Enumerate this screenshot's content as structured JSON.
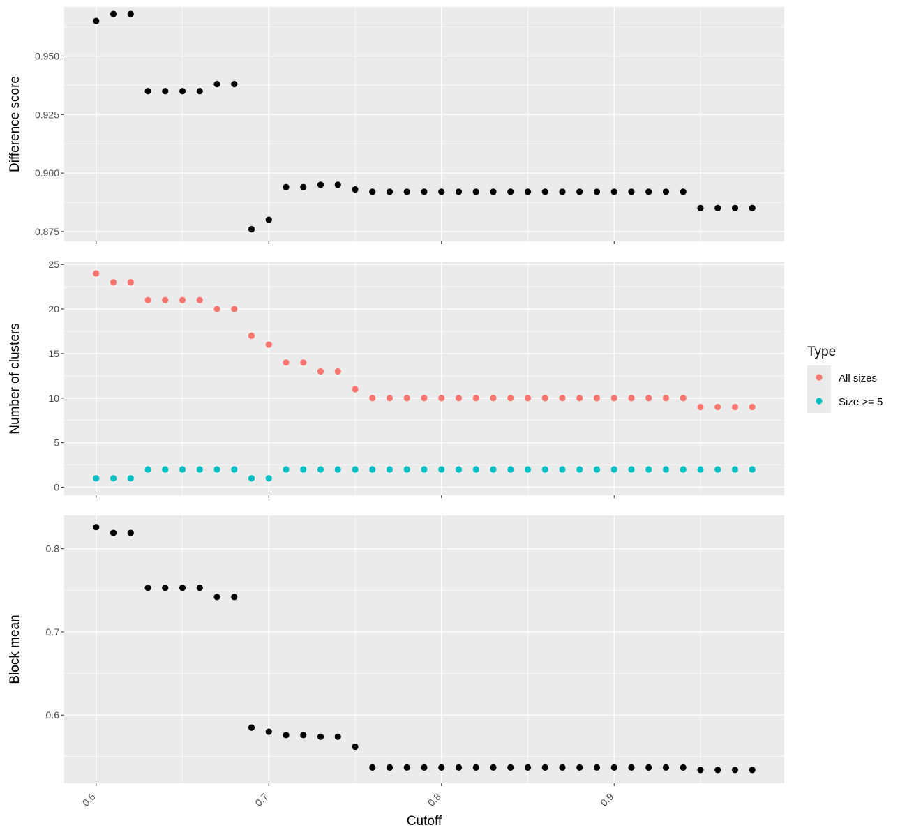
{
  "chart_data": [
    {
      "type": "scatter",
      "panel": "top",
      "ylabel": "Difference score",
      "xlim": [
        0.5815,
        0.9985
      ],
      "ylim": [
        0.8708,
        0.971
      ],
      "yticks": [
        0.875,
        0.9,
        0.925,
        0.95
      ],
      "ytick_labels": [
        "0.875",
        "0.900",
        "0.925",
        "0.950"
      ],
      "x": [
        0.6,
        0.61,
        0.62,
        0.63,
        0.64,
        0.65,
        0.66,
        0.67,
        0.68,
        0.69,
        0.7,
        0.71,
        0.72,
        0.73,
        0.74,
        0.75,
        0.76,
        0.77,
        0.78,
        0.79,
        0.8,
        0.81,
        0.82,
        0.83,
        0.84,
        0.85,
        0.86,
        0.87,
        0.88,
        0.89,
        0.9,
        0.91,
        0.92,
        0.93,
        0.94,
        0.95,
        0.96,
        0.97,
        0.98
      ],
      "series": [
        {
          "color": "#000000",
          "values": [
            0.965,
            0.968,
            0.968,
            0.935,
            0.935,
            0.935,
            0.935,
            0.938,
            0.938,
            0.876,
            0.88,
            0.894,
            0.894,
            0.895,
            0.895,
            0.893,
            0.892,
            0.892,
            0.892,
            0.892,
            0.892,
            0.892,
            0.892,
            0.892,
            0.892,
            0.892,
            0.892,
            0.892,
            0.892,
            0.892,
            0.892,
            0.892,
            0.892,
            0.892,
            0.892,
            0.885,
            0.885,
            0.885,
            0.885
          ]
        }
      ]
    },
    {
      "type": "scatter",
      "panel": "middle",
      "ylabel": "Number of clusters",
      "xlim": [
        0.5815,
        0.9985
      ],
      "ylim": [
        -0.9,
        25.25
      ],
      "yticks": [
        0,
        5,
        10,
        15,
        20,
        25
      ],
      "ytick_labels": [
        "0",
        "5",
        "10",
        "15",
        "20",
        "25"
      ],
      "x": [
        0.6,
        0.61,
        0.62,
        0.63,
        0.64,
        0.65,
        0.66,
        0.67,
        0.68,
        0.69,
        0.7,
        0.71,
        0.72,
        0.73,
        0.74,
        0.75,
        0.76,
        0.77,
        0.78,
        0.79,
        0.8,
        0.81,
        0.82,
        0.83,
        0.84,
        0.85,
        0.86,
        0.87,
        0.88,
        0.89,
        0.9,
        0.91,
        0.92,
        0.93,
        0.94,
        0.95,
        0.96,
        0.97,
        0.98
      ],
      "series": [
        {
          "name": "All sizes",
          "color": "#F8766D",
          "values": [
            24,
            23,
            23,
            21,
            21,
            21,
            21,
            20,
            20,
            17,
            16,
            14,
            14,
            13,
            13,
            11,
            10,
            10,
            10,
            10,
            10,
            10,
            10,
            10,
            10,
            10,
            10,
            10,
            10,
            10,
            10,
            10,
            10,
            10,
            10,
            9,
            9,
            9,
            9
          ]
        },
        {
          "name": "Size >= 5",
          "color": "#00BFC4",
          "values": [
            1,
            1,
            1,
            2,
            2,
            2,
            2,
            2,
            2,
            1,
            1,
            2,
            2,
            2,
            2,
            2,
            2,
            2,
            2,
            2,
            2,
            2,
            2,
            2,
            2,
            2,
            2,
            2,
            2,
            2,
            2,
            2,
            2,
            2,
            2,
            2,
            2,
            2,
            2
          ]
        }
      ]
    },
    {
      "type": "scatter",
      "panel": "bottom",
      "ylabel": "Block mean",
      "xlabel": "Cutoff",
      "xlim": [
        0.5815,
        0.9985
      ],
      "ylim": [
        0.518,
        0.84
      ],
      "yticks": [
        0.6,
        0.7,
        0.8
      ],
      "ytick_labels": [
        "0.6",
        "0.7",
        "0.8"
      ],
      "xticks": [
        0.6,
        0.7,
        0.8,
        0.9
      ],
      "xtick_labels": [
        "0.6",
        "0.7",
        "0.8",
        "0.9"
      ],
      "x": [
        0.6,
        0.61,
        0.62,
        0.63,
        0.64,
        0.65,
        0.66,
        0.67,
        0.68,
        0.69,
        0.7,
        0.71,
        0.72,
        0.73,
        0.74,
        0.75,
        0.76,
        0.77,
        0.78,
        0.79,
        0.8,
        0.81,
        0.82,
        0.83,
        0.84,
        0.85,
        0.86,
        0.87,
        0.88,
        0.89,
        0.9,
        0.91,
        0.92,
        0.93,
        0.94,
        0.95,
        0.96,
        0.97,
        0.98
      ],
      "series": [
        {
          "color": "#000000",
          "values": [
            0.826,
            0.819,
            0.819,
            0.753,
            0.753,
            0.753,
            0.753,
            0.742,
            0.742,
            0.585,
            0.58,
            0.576,
            0.576,
            0.574,
            0.574,
            0.562,
            0.537,
            0.537,
            0.537,
            0.537,
            0.537,
            0.537,
            0.537,
            0.537,
            0.537,
            0.537,
            0.537,
            0.537,
            0.537,
            0.537,
            0.537,
            0.537,
            0.537,
            0.537,
            0.537,
            0.534,
            0.534,
            0.534,
            0.534
          ]
        }
      ]
    }
  ],
  "legend": {
    "title": "Type",
    "position": "right",
    "items": [
      {
        "label": "All sizes",
        "color": "#F8766D"
      },
      {
        "label": "Size >= 5",
        "color": "#00BFC4"
      }
    ]
  },
  "style": {
    "panel_background": "#EBEBEB",
    "grid_color": "#FFFFFF",
    "grid": true
  }
}
